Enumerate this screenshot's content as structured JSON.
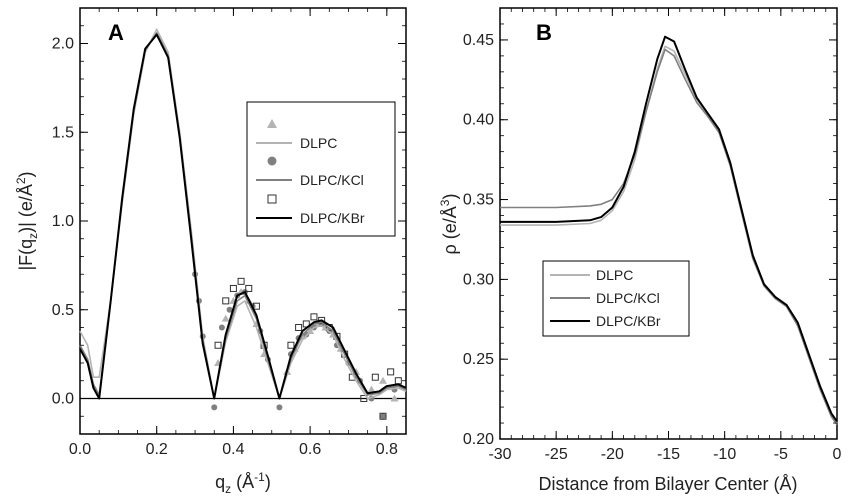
{
  "chart_data": [
    {
      "type": "line",
      "panel_label": "A",
      "xlabel": "q",
      "xlabel_sub": "z",
      "xlabel_unit": "(Å",
      "xlabel_unit_sup": "-1",
      "xlabel_close": ")",
      "ylabel": "|F(q",
      "ylabel_sub": "z",
      "ylabel_mid": ")| (e/Å",
      "ylabel_sup": "2",
      "ylabel_close": ")",
      "xlim": [
        0,
        0.85
      ],
      "ylim": [
        -0.2,
        2.2
      ],
      "xticks": [
        0.0,
        0.2,
        0.4,
        0.6,
        0.8
      ],
      "xtick_labels": [
        "0.0",
        "0.2",
        "0.4",
        "0.6",
        "0.8"
      ],
      "yticks": [
        0.0,
        0.5,
        1.0,
        1.5,
        2.0
      ],
      "ytick_labels": [
        "0.0",
        "0.5",
        "1.0",
        "1.5",
        "2.0"
      ],
      "legend": {
        "position": "center-right",
        "entries": [
          {
            "label": "",
            "marker": "triangle",
            "color": "#b4b4b4"
          },
          {
            "label": "DLPC",
            "line": true,
            "color": "#b4b4b4"
          },
          {
            "label": "",
            "marker": "circle",
            "color": "#808080"
          },
          {
            "label": "DLPC/KCl",
            "line": true,
            "color": "#808080"
          },
          {
            "label": "",
            "marker": "open-square",
            "color": "#333333"
          },
          {
            "label": "DLPC/KBr",
            "line": true,
            "color": "#000000"
          }
        ]
      },
      "series": [
        {
          "name": "DLPC",
          "color": "#b4b4b4",
          "x": [
            0.0,
            0.02,
            0.035,
            0.05,
            0.08,
            0.11,
            0.14,
            0.17,
            0.2,
            0.23,
            0.26,
            0.29,
            0.32,
            0.35,
            0.38,
            0.41,
            0.43,
            0.46,
            0.49,
            0.52,
            0.55,
            0.58,
            0.61,
            0.63,
            0.66,
            0.69,
            0.72,
            0.75,
            0.78,
            0.8,
            0.83,
            0.85
          ],
          "y": [
            0.38,
            0.3,
            0.12,
            0.12,
            0.55,
            1.1,
            1.6,
            1.95,
            2.08,
            1.95,
            1.5,
            0.95,
            0.35,
            0.0,
            0.32,
            0.52,
            0.55,
            0.4,
            0.2,
            0.0,
            0.2,
            0.33,
            0.4,
            0.41,
            0.36,
            0.22,
            0.1,
            0.0,
            0.02,
            0.05,
            0.06,
            0.04
          ]
        },
        {
          "name": "DLPC/KCl",
          "color": "#808080",
          "x": [
            0.0,
            0.02,
            0.035,
            0.05,
            0.08,
            0.11,
            0.14,
            0.17,
            0.2,
            0.23,
            0.26,
            0.29,
            0.32,
            0.35,
            0.38,
            0.41,
            0.43,
            0.46,
            0.49,
            0.52,
            0.55,
            0.58,
            0.61,
            0.63,
            0.66,
            0.69,
            0.72,
            0.75,
            0.78,
            0.8,
            0.83,
            0.85
          ],
          "y": [
            0.3,
            0.22,
            0.08,
            0.02,
            0.55,
            1.12,
            1.62,
            1.96,
            2.06,
            1.93,
            1.48,
            0.92,
            0.33,
            0.0,
            0.34,
            0.55,
            0.58,
            0.45,
            0.22,
            0.0,
            0.22,
            0.36,
            0.42,
            0.43,
            0.38,
            0.25,
            0.12,
            0.02,
            0.03,
            0.06,
            0.07,
            0.05
          ]
        },
        {
          "name": "DLPC/KBr",
          "color": "#000000",
          "x": [
            0.0,
            0.02,
            0.035,
            0.05,
            0.08,
            0.11,
            0.14,
            0.17,
            0.2,
            0.23,
            0.26,
            0.29,
            0.32,
            0.35,
            0.38,
            0.41,
            0.43,
            0.46,
            0.49,
            0.52,
            0.55,
            0.58,
            0.61,
            0.63,
            0.66,
            0.69,
            0.72,
            0.75,
            0.78,
            0.8,
            0.83,
            0.85
          ],
          "y": [
            0.28,
            0.2,
            0.06,
            0.0,
            0.55,
            1.13,
            1.63,
            1.97,
            2.05,
            1.92,
            1.47,
            0.9,
            0.31,
            0.0,
            0.36,
            0.58,
            0.6,
            0.47,
            0.24,
            0.0,
            0.24,
            0.38,
            0.43,
            0.44,
            0.4,
            0.27,
            0.14,
            0.03,
            0.04,
            0.07,
            0.08,
            0.06
          ]
        }
      ],
      "scatter": [
        {
          "name": "DLPC data",
          "marker": "triangle",
          "color": "#b4b4b4",
          "x": [
            0.36,
            0.38,
            0.4,
            0.42,
            0.44,
            0.46,
            0.48,
            0.54,
            0.56,
            0.58,
            0.6,
            0.62,
            0.64,
            0.66,
            0.68,
            0.72,
            0.76,
            0.79,
            0.82
          ],
          "y": [
            0.2,
            0.45,
            0.55,
            0.6,
            0.55,
            0.42,
            0.25,
            0.15,
            0.28,
            0.35,
            0.38,
            0.42,
            0.4,
            0.36,
            0.28,
            0.15,
            0.05,
            0.1,
            0.0
          ]
        },
        {
          "name": "DLPC/KCl data",
          "marker": "circle",
          "color": "#808080",
          "x": [
            0.3,
            0.31,
            0.32,
            0.35,
            0.37,
            0.39,
            0.41,
            0.43,
            0.45,
            0.47,
            0.49,
            0.52,
            0.55,
            0.57,
            0.59,
            0.61,
            0.63,
            0.65,
            0.67,
            0.7,
            0.73,
            0.76,
            0.79,
            0.82
          ],
          "y": [
            0.7,
            0.55,
            0.35,
            -0.05,
            0.4,
            0.5,
            0.58,
            0.6,
            0.52,
            0.38,
            0.22,
            -0.05,
            0.25,
            0.34,
            0.36,
            0.4,
            0.42,
            0.38,
            0.3,
            0.2,
            0.1,
            0.0,
            -0.1,
            0.05
          ]
        },
        {
          "name": "DLPC/KBr data",
          "marker": "open-square",
          "color": "#333333",
          "x": [
            0.36,
            0.38,
            0.4,
            0.42,
            0.44,
            0.46,
            0.48,
            0.55,
            0.57,
            0.59,
            0.61,
            0.63,
            0.65,
            0.67,
            0.69,
            0.71,
            0.74,
            0.77,
            0.79,
            0.81,
            0.83
          ],
          "y": [
            0.3,
            0.55,
            0.62,
            0.66,
            0.62,
            0.52,
            0.3,
            0.3,
            0.4,
            0.42,
            0.46,
            0.44,
            0.4,
            0.35,
            0.25,
            0.12,
            0.0,
            0.12,
            -0.1,
            0.15,
            0.1
          ]
        }
      ]
    },
    {
      "type": "line",
      "panel_label": "B",
      "xlabel": "Distance from Bilayer Center (Å)",
      "ylabel": "ρ (e/Å",
      "ylabel_sup": "3",
      "ylabel_close": ")",
      "xlim": [
        -30,
        0
      ],
      "ylim": [
        0.2,
        0.47
      ],
      "xticks": [
        -30,
        -25,
        -20,
        -15,
        -10,
        -5,
        0
      ],
      "xtick_labels": [
        "-30",
        "-25",
        "-20",
        "-15",
        "-10",
        "-5",
        "0"
      ],
      "yticks": [
        0.2,
        0.25,
        0.3,
        0.35,
        0.4,
        0.45
      ],
      "ytick_labels": [
        "0.20",
        "0.25",
        "0.30",
        "0.35",
        "0.40",
        "0.45"
      ],
      "legend": {
        "position": "lower-left",
        "entries": [
          {
            "label": "DLPC",
            "color": "#b4b4b4"
          },
          {
            "label": "DLPC/KCl",
            "color": "#808080"
          },
          {
            "label": "DLPC/KBr",
            "color": "#000000"
          }
        ]
      },
      "series": [
        {
          "name": "DLPC",
          "color": "#b4b4b4",
          "x": [
            -30,
            -25,
            -22,
            -21,
            -20,
            -19,
            -18,
            -17,
            -16,
            -15.3,
            -14.5,
            -13.5,
            -12.5,
            -11.5,
            -10.5,
            -9.5,
            -8.5,
            -7.5,
            -6.5,
            -5.5,
            -4.5,
            -3.5,
            -2.5,
            -1.5,
            -0.5,
            0
          ],
          "y": [
            0.334,
            0.334,
            0.335,
            0.337,
            0.343,
            0.355,
            0.375,
            0.405,
            0.432,
            0.446,
            0.443,
            0.428,
            0.413,
            0.403,
            0.393,
            0.372,
            0.343,
            0.314,
            0.296,
            0.288,
            0.283,
            0.272,
            0.252,
            0.232,
            0.215,
            0.21
          ]
        },
        {
          "name": "DLPC/KCl",
          "color": "#808080",
          "x": [
            -30,
            -25,
            -22,
            -21,
            -20,
            -19,
            -18,
            -17,
            -16,
            -15.3,
            -14.5,
            -13.5,
            -12.5,
            -11.5,
            -10.5,
            -9.5,
            -8.5,
            -7.5,
            -6.5,
            -5.5,
            -4.5,
            -3.5,
            -2.5,
            -1.5,
            -0.5,
            0
          ],
          "y": [
            0.345,
            0.345,
            0.346,
            0.347,
            0.35,
            0.36,
            0.378,
            0.405,
            0.43,
            0.444,
            0.44,
            0.425,
            0.411,
            0.402,
            0.392,
            0.371,
            0.342,
            0.313,
            0.296,
            0.288,
            0.283,
            0.271,
            0.251,
            0.231,
            0.214,
            0.209
          ]
        },
        {
          "name": "DLPC/KBr",
          "color": "#000000",
          "x": [
            -30,
            -25,
            -22,
            -21,
            -20,
            -19,
            -18,
            -17,
            -16,
            -15.3,
            -14.5,
            -13.5,
            -12.5,
            -11.5,
            -10.5,
            -9.5,
            -8.5,
            -7.5,
            -6.5,
            -5.5,
            -4.5,
            -3.5,
            -2.5,
            -1.5,
            -0.5,
            0
          ],
          "y": [
            0.336,
            0.336,
            0.337,
            0.339,
            0.345,
            0.358,
            0.38,
            0.41,
            0.438,
            0.452,
            0.449,
            0.431,
            0.414,
            0.404,
            0.394,
            0.373,
            0.344,
            0.315,
            0.297,
            0.289,
            0.284,
            0.273,
            0.253,
            0.233,
            0.216,
            0.211
          ]
        }
      ]
    }
  ]
}
